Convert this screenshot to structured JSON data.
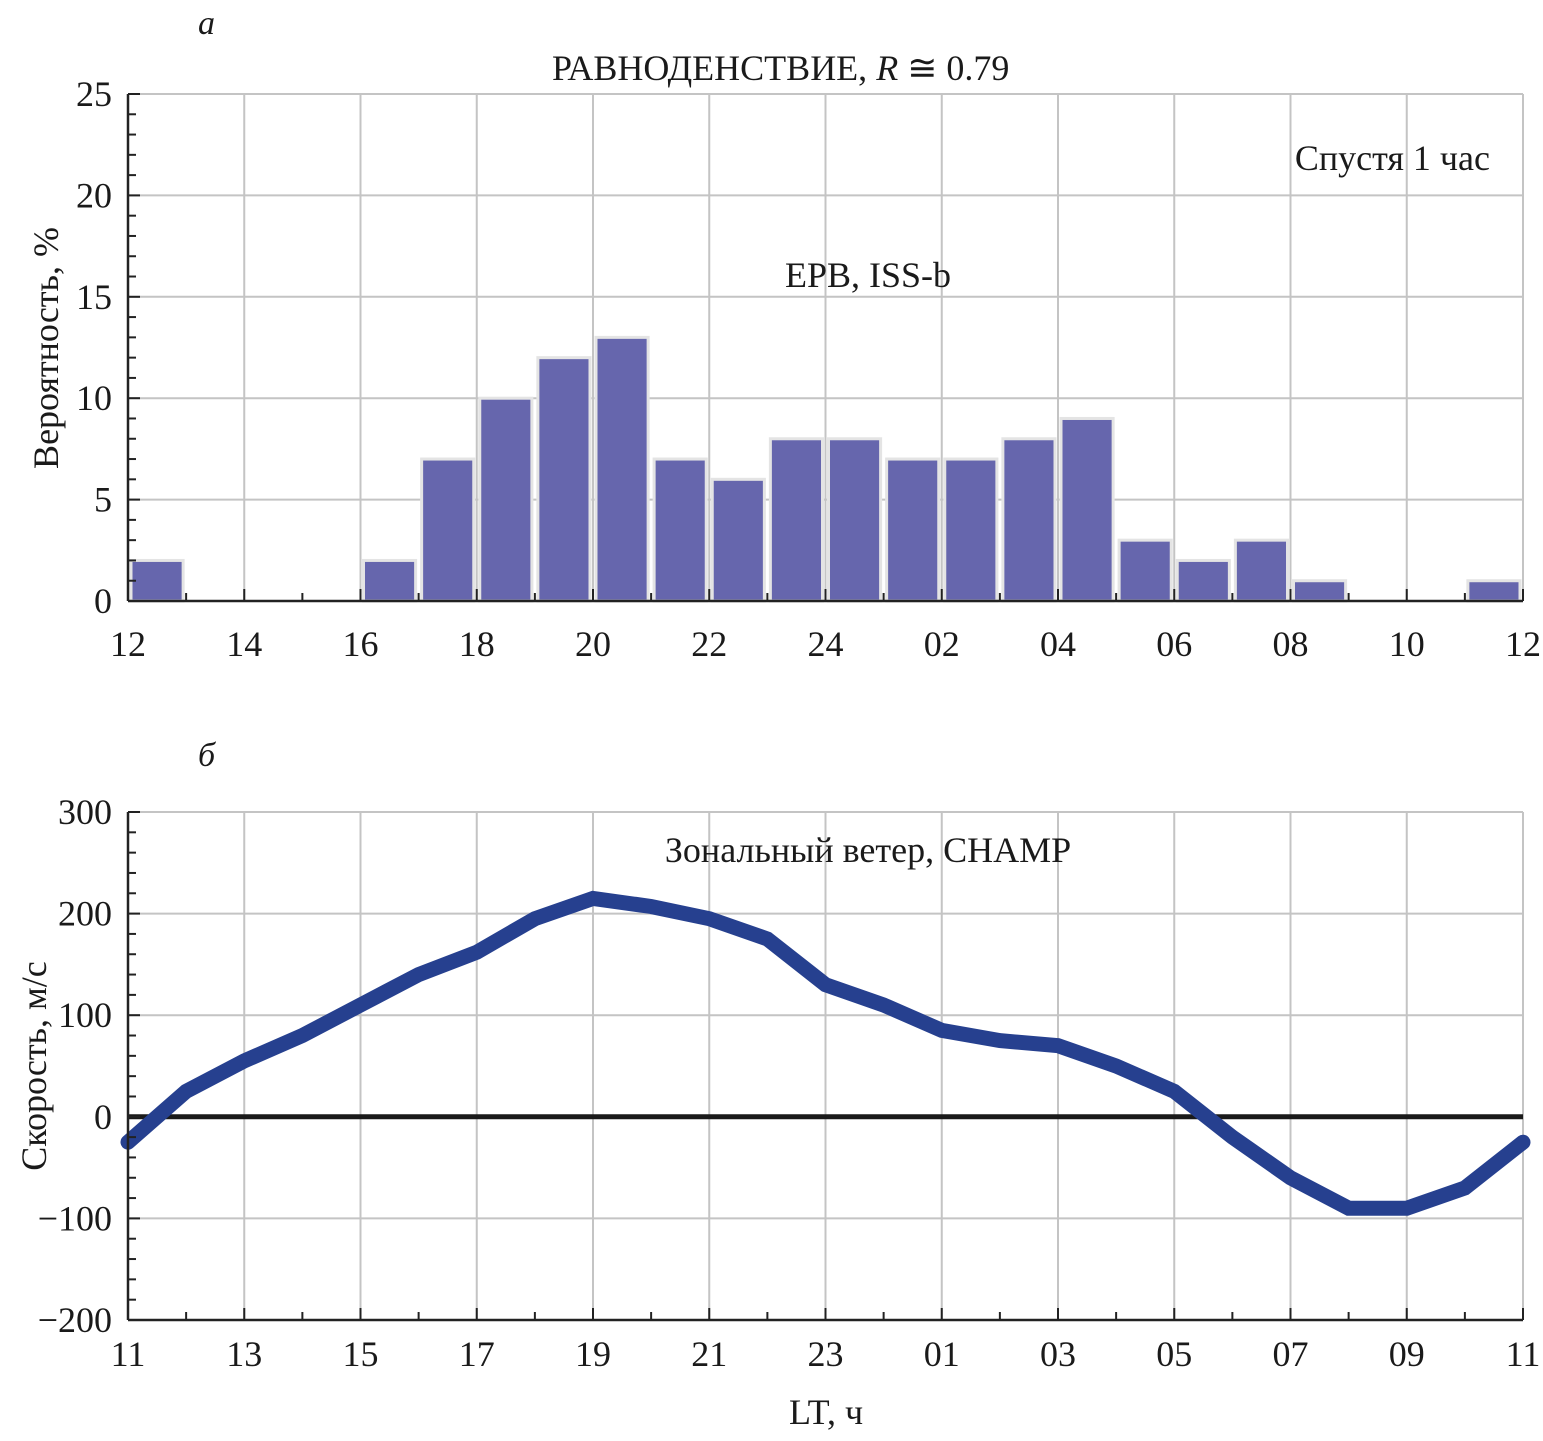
{
  "chart_data": [
    {
      "type": "bar",
      "panel_label": "а",
      "title_prefix": "РАВНОДЕНСТВИЕ, ",
      "title_var": "R",
      "title_suffix": " ≅ 0.79",
      "annotation_top_right": "Спустя 1 час",
      "annotation_center": "EPB, ISS-b",
      "ylabel": "Вероятность, %",
      "ylim": [
        0,
        25
      ],
      "yticks": [
        0,
        5,
        10,
        15,
        20,
        25
      ],
      "xticks": [
        "12",
        "14",
        "16",
        "18",
        "20",
        "22",
        "24",
        "02",
        "04",
        "06",
        "08",
        "10",
        "12"
      ],
      "grid": true,
      "bar_color": "#6666ad",
      "hours_start": 12,
      "bins": [
        "12-13",
        "13-14",
        "14-15",
        "15-16",
        "16-17",
        "17-18",
        "18-19",
        "19-20",
        "20-21",
        "21-22",
        "22-23",
        "23-24",
        "24-01",
        "01-02",
        "02-03",
        "03-04",
        "04-05",
        "05-06",
        "06-07",
        "07-08",
        "08-09",
        "09-10",
        "10-11",
        "11-12"
      ],
      "values": [
        2,
        0,
        0,
        0,
        2,
        7,
        10,
        12,
        13,
        7,
        6,
        8,
        8,
        7,
        7,
        8,
        9,
        3,
        2,
        3,
        1,
        0,
        0,
        1
      ]
    },
    {
      "type": "line",
      "panel_label": "б",
      "annotation_center": "Зональный ветер, CHAMP",
      "ylabel": "Скорость, м/с",
      "xlabel": "LT, ч",
      "ylim": [
        -200,
        300
      ],
      "yticks": [
        "−200",
        "−100",
        "0",
        "100",
        "200",
        "300"
      ],
      "ytick_values": [
        -200,
        -100,
        0,
        100,
        200,
        300
      ],
      "xticks": [
        "11",
        "13",
        "15",
        "17",
        "19",
        "21",
        "23",
        "01",
        "03",
        "05",
        "07",
        "09",
        "11"
      ],
      "grid": true,
      "line_color": "#26408f",
      "x_hours_from_11": [
        0,
        1,
        2,
        3,
        4,
        5,
        6,
        7,
        8,
        9,
        10,
        11,
        12,
        13,
        14,
        15,
        16,
        17,
        18,
        19,
        20,
        21,
        22,
        23,
        24
      ],
      "values": [
        -25,
        25,
        55,
        80,
        110,
        140,
        162,
        195,
        215,
        207,
        195,
        175,
        130,
        110,
        85,
        75,
        70,
        50,
        25,
        -20,
        -60,
        -90,
        -90,
        -70,
        -25
      ]
    }
  ]
}
